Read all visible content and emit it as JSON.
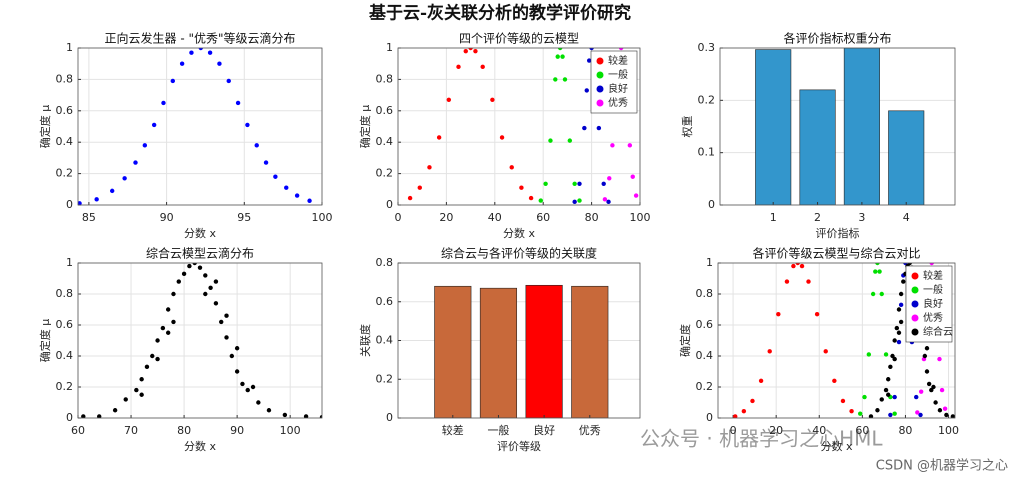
{
  "figure_title": "基于云-灰关联分析的教学评价研究",
  "watermarks": [
    "公众号 · 机器学习之心HML",
    "CSDN @机器学习之心"
  ],
  "chart_data": [
    {
      "type": "scatter",
      "title": "正向云发生器 - \"优秀\"等级云滴分布",
      "xlabel": "分数 x",
      "ylabel": "确定度 μ",
      "xlim": [
        84.3,
        100
      ],
      "xticks": [
        85,
        90,
        95,
        100
      ],
      "ylim": [
        0,
        1
      ],
      "yticks": [
        0,
        0.2,
        0.4,
        0.6,
        0.8,
        1
      ],
      "grid": true,
      "series": [
        {
          "color": "#0000ff",
          "x": [
            84.4,
            85.5,
            86.5,
            87.3,
            88.0,
            88.6,
            89.2,
            89.8,
            90.4,
            91.0,
            91.6,
            92.2,
            92.8,
            93.4,
            94.0,
            94.6,
            95.2,
            95.8,
            96.4,
            97.0,
            97.7,
            98.4,
            99.2
          ],
          "values": [
            0.011,
            0.036,
            0.09,
            0.17,
            0.27,
            0.38,
            0.51,
            0.65,
            0.79,
            0.9,
            0.97,
            1,
            0.97,
            0.9,
            0.79,
            0.65,
            0.51,
            0.38,
            0.27,
            0.18,
            0.11,
            0.06,
            0.027
          ]
        }
      ]
    },
    {
      "type": "scatter",
      "title": "四个评价等级的云模型",
      "xlabel": "分数 x",
      "ylabel": "确定度 μ",
      "xlim": [
        0,
        100
      ],
      "xticks": [
        0,
        20,
        40,
        60,
        80,
        100
      ],
      "ylim": [
        0,
        1
      ],
      "yticks": [
        0,
        0.2,
        0.4,
        0.6,
        0.8,
        1
      ],
      "grid": true,
      "legend": "upper right",
      "series": [
        {
          "name": "较差",
          "color": "#ff0000",
          "x": [
            5,
            9,
            13,
            17,
            21,
            25,
            28,
            30,
            32,
            35,
            39,
            43,
            47,
            51,
            55
          ],
          "values": [
            0.044,
            0.11,
            0.24,
            0.43,
            0.67,
            0.88,
            0.98,
            1,
            0.98,
            0.88,
            0.67,
            0.43,
            0.24,
            0.11,
            0.044
          ]
        },
        {
          "name": "一般",
          "color": "#00e000",
          "x": [
            59,
            61,
            63,
            65,
            66,
            67,
            68,
            69,
            71,
            73,
            75
          ],
          "values": [
            0.028,
            0.135,
            0.41,
            0.8,
            0.945,
            1,
            0.945,
            0.8,
            0.41,
            0.135,
            0.028
          ]
        },
        {
          "name": "良好",
          "color": "#0000cc",
          "x": [
            73,
            75,
            77,
            78,
            79,
            80,
            81,
            82,
            83,
            85,
            87
          ],
          "values": [
            0.02,
            0.135,
            0.49,
            0.73,
            0.92,
            1,
            0.92,
            0.73,
            0.49,
            0.135,
            0.02
          ]
        },
        {
          "name": "优秀",
          "color": "#ff00ff",
          "x": [
            85.5,
            87.3,
            88.6,
            89.8,
            91,
            92.2,
            93.4,
            94.6,
            95.8,
            97,
            98.4
          ],
          "values": [
            0.036,
            0.17,
            0.38,
            0.65,
            0.9,
            1,
            0.9,
            0.65,
            0.38,
            0.18,
            0.06
          ]
        }
      ]
    },
    {
      "type": "bar",
      "title": "各评价指标权重分布",
      "xlabel": "评价指标",
      "ylabel": "权重",
      "categories": [
        "1",
        "2",
        "3",
        "4"
      ],
      "values": [
        0.297,
        0.22,
        0.3,
        0.18
      ],
      "color": "#3396cc",
      "ylim": [
        0,
        0.3
      ],
      "yticks": [
        0,
        0.1,
        0.2,
        0.3
      ],
      "grid": true
    },
    {
      "type": "scatter",
      "title": "综合云模型云滴分布",
      "xlabel": "分数 x",
      "ylabel": "确定度 μ",
      "xlim": [
        60,
        106
      ],
      "xticks": [
        60,
        70,
        80,
        90,
        100
      ],
      "ylim": [
        0,
        1
      ],
      "yticks": [
        0,
        0.2,
        0.4,
        0.6,
        0.8,
        1
      ],
      "grid": true,
      "series": [
        {
          "color": "#000000",
          "x": [
            61,
            64,
            67,
            69,
            71,
            72,
            73,
            74,
            75,
            76,
            77,
            78,
            79,
            80,
            81,
            82,
            83,
            84,
            85,
            86,
            87,
            88,
            89,
            90,
            91,
            92,
            94,
            96,
            99,
            103,
            106,
            75,
            78,
            86,
            88,
            90,
            72,
            93,
            77,
            84
          ],
          "values": [
            0.01,
            0.01,
            0.05,
            0.12,
            0.18,
            0.25,
            0.33,
            0.4,
            0.5,
            0.58,
            0.7,
            0.8,
            0.88,
            0.93,
            0.98,
            1,
            0.97,
            0.92,
            0.84,
            0.74,
            0.62,
            0.52,
            0.4,
            0.3,
            0.22,
            0.18,
            0.1,
            0.05,
            0.02,
            0.01,
            0.005,
            0.38,
            0.62,
            0.88,
            0.66,
            0.45,
            0.15,
            0.2,
            0.55,
            0.8
          ]
        }
      ]
    },
    {
      "type": "bar",
      "title": "综合云与各评价等级的关联度",
      "xlabel": "评价等级",
      "ylabel": "关联度",
      "categories": [
        "较差",
        "一般",
        "良好",
        "优秀"
      ],
      "values": [
        0.68,
        0.67,
        0.685,
        0.68
      ],
      "colors": [
        "#c8693a",
        "#c8693a",
        "#ff0000",
        "#c8693a"
      ],
      "ylim": [
        0,
        0.8
      ],
      "yticks": [
        0,
        0.2,
        0.4,
        0.6,
        0.8
      ],
      "grid": true
    },
    {
      "type": "scatter",
      "title": "各评价等级云模型与综合云对比",
      "xlabel": "分数 x",
      "ylabel": "确定度",
      "xlim": [
        -7,
        103
      ],
      "xticks": [
        0,
        20,
        40,
        60,
        80,
        100
      ],
      "ylim": [
        0,
        1
      ],
      "yticks": [
        0,
        0.2,
        0.4,
        0.6,
        0.8,
        1
      ],
      "grid": true,
      "legend": "upper right",
      "series": [
        {
          "name": "较差",
          "color": "#ff0000",
          "x": [
            1,
            5,
            9,
            13,
            17,
            21,
            25,
            28,
            30,
            32,
            35,
            39,
            43,
            47,
            51,
            55
          ],
          "values": [
            0.01,
            0.044,
            0.11,
            0.24,
            0.43,
            0.67,
            0.88,
            0.98,
            1,
            0.98,
            0.88,
            0.67,
            0.43,
            0.24,
            0.11,
            0.044
          ]
        },
        {
          "name": "一般",
          "color": "#00e000",
          "x": [
            59,
            61,
            63,
            65,
            66,
            67,
            68,
            69,
            71,
            73,
            75
          ],
          "values": [
            0.028,
            0.135,
            0.41,
            0.8,
            0.945,
            1,
            0.945,
            0.8,
            0.41,
            0.135,
            0.028
          ]
        },
        {
          "name": "良好",
          "color": "#0000cc",
          "x": [
            73,
            75,
            77,
            78,
            79,
            80,
            81,
            82,
            83,
            85,
            87
          ],
          "values": [
            0.02,
            0.135,
            0.49,
            0.73,
            0.92,
            1,
            0.92,
            0.73,
            0.49,
            0.135,
            0.02
          ]
        },
        {
          "name": "优秀",
          "color": "#ff00ff",
          "x": [
            85.5,
            87.3,
            88.6,
            89.8,
            91,
            92.2,
            93.4,
            94.6,
            95.8,
            97,
            98.4
          ],
          "values": [
            0.036,
            0.17,
            0.38,
            0.65,
            0.9,
            1,
            0.9,
            0.65,
            0.38,
            0.18,
            0.06
          ]
        },
        {
          "name": "综合云",
          "color": "#000000",
          "x": [
            64,
            67,
            69,
            71,
            72,
            73,
            74,
            75,
            76,
            77,
            78,
            79,
            80,
            81,
            82,
            83,
            84,
            85,
            86,
            87,
            88,
            89,
            90,
            91,
            92,
            94,
            96,
            99,
            102,
            75,
            78,
            86,
            88,
            90,
            72,
            93,
            77,
            84
          ],
          "values": [
            0.01,
            0.05,
            0.12,
            0.18,
            0.25,
            0.33,
            0.4,
            0.5,
            0.58,
            0.7,
            0.8,
            0.88,
            0.93,
            0.98,
            1,
            0.97,
            0.92,
            0.84,
            0.74,
            0.62,
            0.52,
            0.4,
            0.3,
            0.22,
            0.18,
            0.1,
            0.05,
            0.02,
            0.01,
            0.38,
            0.62,
            0.88,
            0.66,
            0.45,
            0.15,
            0.2,
            0.55,
            0.8
          ]
        }
      ]
    }
  ]
}
